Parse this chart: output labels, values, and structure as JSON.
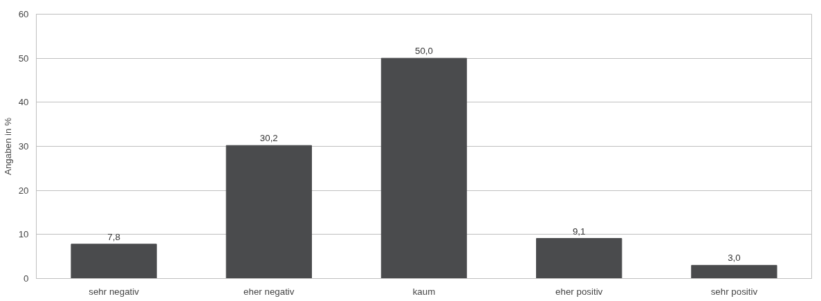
{
  "chart_data": {
    "type": "bar",
    "ylabel": "Angaben in %",
    "categories": [
      "sehr negativ",
      "eher negativ",
      "kaum",
      "eher positiv",
      "sehr positiv"
    ],
    "values": [
      7.8,
      30.2,
      50.0,
      9.1,
      3.0
    ],
    "value_labels": [
      "7,8",
      "30,2",
      "50,0",
      "9,1",
      "3,0"
    ],
    "color": "#4a4b4d",
    "ylim": [
      0,
      60
    ],
    "yticks": [
      0,
      10,
      20,
      30,
      40,
      50,
      60
    ],
    "grid": "y"
  }
}
